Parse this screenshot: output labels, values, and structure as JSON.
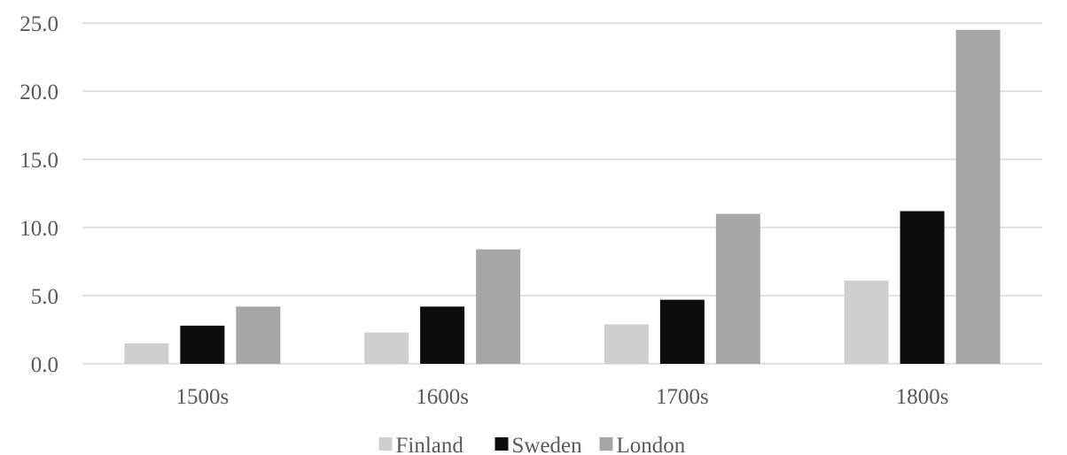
{
  "chart_data": {
    "type": "bar",
    "categories": [
      "1500s",
      "1600s",
      "1700s",
      "1800s"
    ],
    "series": [
      {
        "name": "Finland",
        "color": "#d0cece",
        "values": [
          1.5,
          2.3,
          2.9,
          6.1
        ]
      },
      {
        "name": "Sweden",
        "color": "#0d0d0d",
        "values": [
          2.8,
          4.2,
          4.7,
          11.2
        ]
      },
      {
        "name": "London",
        "color": "#a6a6a6",
        "values": [
          4.2,
          8.4,
          11.0,
          24.5
        ]
      }
    ],
    "ylim": [
      0,
      25
    ],
    "yticks": [
      "0.0",
      "5.0",
      "10.0",
      "15.0",
      "20.0",
      "25.0"
    ],
    "ytick_values": [
      0,
      5,
      10,
      15,
      20,
      25
    ],
    "grid": true,
    "legend_position": "bottom",
    "title": "",
    "xlabel": "",
    "ylabel": ""
  }
}
